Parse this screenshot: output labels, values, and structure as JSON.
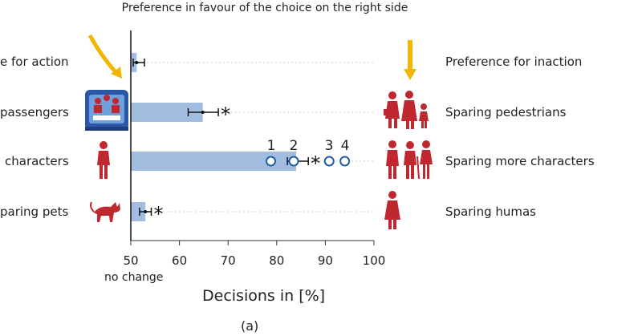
{
  "title": "Preference in favour of the choice on the right side",
  "caption": "(a)",
  "no_change_label": "no change",
  "chart_data": {
    "type": "bar",
    "orientation": "horizontal",
    "xlabel": "Decisions in [%]",
    "xlim": [
      50,
      100
    ],
    "xticks": [
      50,
      60,
      70,
      80,
      90,
      100
    ],
    "grid": false,
    "rows": [
      {
        "left": "e for action",
        "right": "Preference for inaction",
        "value": 51.2,
        "err_low": 50.5,
        "err_high": 52.8,
        "star": false
      },
      {
        "left": "passengers",
        "right": "Sparing pedestrians",
        "value": 64.8,
        "err_low": 61.8,
        "err_high": 68.0,
        "star": true
      },
      {
        "left": "characters",
        "right": "Sparing more characters",
        "value": 84.0,
        "err_low": 82.2,
        "err_high": 86.5,
        "star": true
      },
      {
        "left": "paring pets",
        "right": "Sparing humas",
        "value": 53.0,
        "err_low": 51.8,
        "err_high": 54.2,
        "star": true
      }
    ],
    "markers": [
      {
        "label": "1",
        "value": 78.8
      },
      {
        "label": "2",
        "value": 83.5
      },
      {
        "label": "3",
        "value": 90.8
      },
      {
        "label": "4",
        "value": 94.0
      }
    ],
    "colors": {
      "bar": "#a2bde0",
      "marker": "#1f5fa8",
      "icon": "#c0282f",
      "arrow": "#f2b705",
      "axis": "#333333"
    }
  }
}
